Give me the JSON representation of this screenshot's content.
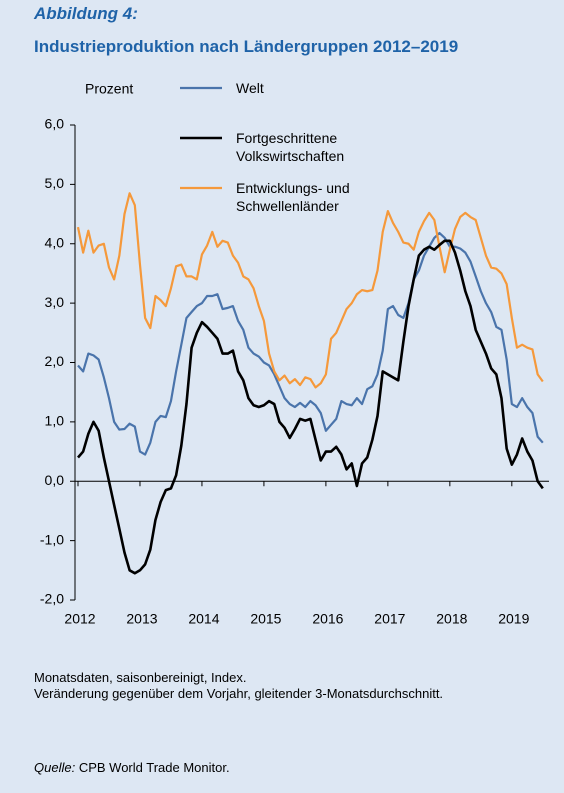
{
  "chart_data": {
    "type": "line",
    "figure_label": "Abbildung 4:",
    "title": "Industrieproduktion nach Ländergruppen 2012–2019",
    "y_label": "Prozent",
    "x": [
      2012,
      2012.083,
      2012.167,
      2012.25,
      2012.333,
      2012.417,
      2012.5,
      2012.583,
      2012.667,
      2012.75,
      2012.833,
      2012.917,
      2013,
      2013.083,
      2013.167,
      2013.25,
      2013.333,
      2013.417,
      2013.5,
      2013.583,
      2013.667,
      2013.75,
      2013.833,
      2013.917,
      2014,
      2014.083,
      2014.167,
      2014.25,
      2014.333,
      2014.417,
      2014.5,
      2014.583,
      2014.667,
      2014.75,
      2014.833,
      2014.917,
      2015,
      2015.083,
      2015.167,
      2015.25,
      2015.333,
      2015.417,
      2015.5,
      2015.583,
      2015.667,
      2015.75,
      2015.833,
      2015.917,
      2016,
      2016.083,
      2016.167,
      2016.25,
      2016.333,
      2016.417,
      2016.5,
      2016.583,
      2016.667,
      2016.75,
      2016.833,
      2016.917,
      2017,
      2017.083,
      2017.167,
      2017.25,
      2017.333,
      2017.417,
      2017.5,
      2017.583,
      2017.667,
      2017.75,
      2017.833,
      2017.917,
      2018,
      2018.083,
      2018.167,
      2018.25,
      2018.333,
      2018.417,
      2018.5,
      2018.583,
      2018.667,
      2018.75,
      2018.833,
      2018.917,
      2019,
      2019.083,
      2019.167,
      2019.25,
      2019.333,
      2019.417,
      2019.5
    ],
    "series": [
      {
        "name": "Welt",
        "color": "#4a74ab",
        "values": [
          1.95,
          1.85,
          2.15,
          2.12,
          2.05,
          1.75,
          1.4,
          1.0,
          0.87,
          0.88,
          0.97,
          0.92,
          0.5,
          0.45,
          0.65,
          1.0,
          1.1,
          1.08,
          1.35,
          1.85,
          2.3,
          2.75,
          2.85,
          2.95,
          3.0,
          3.12,
          3.12,
          3.15,
          2.9,
          2.92,
          2.95,
          2.7,
          2.55,
          2.25,
          2.15,
          2.1,
          2.0,
          1.95,
          1.8,
          1.6,
          1.4,
          1.3,
          1.25,
          1.32,
          1.25,
          1.35,
          1.28,
          1.15,
          0.85,
          0.95,
          1.05,
          1.35,
          1.3,
          1.28,
          1.4,
          1.3,
          1.55,
          1.6,
          1.8,
          2.2,
          2.9,
          2.95,
          2.8,
          2.75,
          3.0,
          3.4,
          3.55,
          3.8,
          3.95,
          4.1,
          4.18,
          4.1,
          3.95,
          3.95,
          3.92,
          3.85,
          3.7,
          3.45,
          3.2,
          3.0,
          2.85,
          2.6,
          2.55,
          2.05,
          1.3,
          1.25,
          1.4,
          1.25,
          1.15,
          0.75,
          0.65
        ]
      },
      {
        "name": "Fortgeschrittene Volkswirtschaften",
        "color": "#000000",
        "values": [
          0.4,
          0.5,
          0.8,
          1.0,
          0.85,
          0.4,
          0.0,
          -0.4,
          -0.8,
          -1.2,
          -1.5,
          -1.55,
          -1.5,
          -1.4,
          -1.15,
          -0.65,
          -0.35,
          -0.15,
          -0.12,
          0.1,
          0.6,
          1.3,
          2.25,
          2.5,
          2.68,
          2.6,
          2.5,
          2.4,
          2.15,
          2.15,
          2.2,
          1.85,
          1.7,
          1.4,
          1.28,
          1.25,
          1.28,
          1.35,
          1.3,
          1.0,
          0.9,
          0.73,
          0.88,
          1.05,
          1.02,
          1.05,
          0.7,
          0.35,
          0.5,
          0.5,
          0.58,
          0.45,
          0.2,
          0.3,
          -0.08,
          0.3,
          0.4,
          0.7,
          1.1,
          1.85,
          1.8,
          1.75,
          1.7,
          2.35,
          2.95,
          3.4,
          3.8,
          3.9,
          3.95,
          3.9,
          3.98,
          4.05,
          4.05,
          3.85,
          3.55,
          3.2,
          2.95,
          2.55,
          2.35,
          2.15,
          1.9,
          1.8,
          1.4,
          0.55,
          0.28,
          0.45,
          0.72,
          0.5,
          0.35,
          0.0,
          -0.12
        ]
      },
      {
        "name": "Entwicklungs- und Schwellenländer",
        "color": "#f5993b",
        "values": [
          4.28,
          3.85,
          4.22,
          3.85,
          3.97,
          4.0,
          3.6,
          3.4,
          3.8,
          4.5,
          4.85,
          4.65,
          3.65,
          2.75,
          2.58,
          3.12,
          3.05,
          2.95,
          3.25,
          3.62,
          3.65,
          3.45,
          3.45,
          3.4,
          3.82,
          3.97,
          4.2,
          3.95,
          4.05,
          4.02,
          3.8,
          3.68,
          3.45,
          3.4,
          3.25,
          2.95,
          2.7,
          2.15,
          1.85,
          1.7,
          1.78,
          1.65,
          1.72,
          1.62,
          1.75,
          1.72,
          1.58,
          1.65,
          1.8,
          2.4,
          2.5,
          2.7,
          2.9,
          3.0,
          3.15,
          3.22,
          3.2,
          3.22,
          3.55,
          4.2,
          4.55,
          4.35,
          4.2,
          4.02,
          4.0,
          3.9,
          4.2,
          4.38,
          4.52,
          4.4,
          3.95,
          3.52,
          3.9,
          4.25,
          4.45,
          4.52,
          4.45,
          4.4,
          4.1,
          3.8,
          3.6,
          3.58,
          3.5,
          3.32,
          2.75,
          2.25,
          2.3,
          2.25,
          2.22,
          1.8,
          1.68
        ]
      }
    ],
    "xlim": [
      2012,
      2019.6
    ],
    "xticks": [
      2012,
      2013,
      2014,
      2015,
      2016,
      2017,
      2018,
      2019
    ],
    "ylim": [
      -2,
      6
    ],
    "yticks": [
      {
        "value": -2,
        "label": "-2,0"
      },
      {
        "value": -1,
        "label": "-1,0"
      },
      {
        "value": 0,
        "label": "0,0"
      },
      {
        "value": 1,
        "label": "1,0"
      },
      {
        "value": 2,
        "label": "2,0"
      },
      {
        "value": 3,
        "label": "3,0"
      },
      {
        "value": 4,
        "label": "4,0"
      },
      {
        "value": 5,
        "label": "5,0"
      },
      {
        "value": 6,
        "label": "6,0"
      }
    ],
    "grid": false,
    "notes": [
      "Monatsdaten, saisonbereinigt, Index.",
      "Veränderung gegenüber dem Vorjahr, gleitender 3-Monatsdurchschnitt."
    ],
    "source": {
      "label": "Quelle:",
      "text": "CPB World Trade Monitor."
    }
  }
}
